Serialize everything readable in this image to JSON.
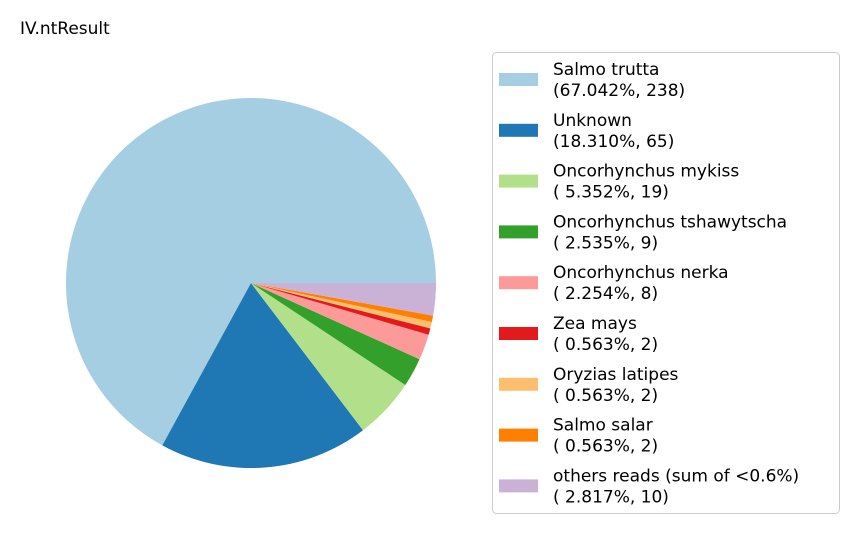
{
  "chart_data": {
    "type": "pie",
    "title": "IV.ntResult",
    "categories": [
      "Salmo trutta",
      "Unknown",
      "Oncorhynchus mykiss",
      "Oncorhynchus tshawytscha",
      "Oncorhynchus nerka",
      "Zea mays",
      "Oryzias latipes",
      "Salmo salar",
      "others reads (sum of <0.6%)"
    ],
    "values": [
      238,
      65,
      19,
      9,
      8,
      2,
      2,
      2,
      10
    ],
    "value_labels": [
      "(67.042%, 238)",
      "(18.310%, 65)",
      "( 5.352%, 19)",
      "( 2.535%, 9)",
      "( 2.254%, 8)",
      "( 0.563%, 2)",
      "( 0.563%, 2)",
      "( 0.563%, 2)",
      "( 2.817%, 10)"
    ],
    "colors": [
      "#a6cee3",
      "#1f78b4",
      "#b2df8a",
      "#33a02c",
      "#fb9a99",
      "#e31a1c",
      "#fdbf6f",
      "#ff7f00",
      "#cab2d6"
    ],
    "legend": "right"
  }
}
